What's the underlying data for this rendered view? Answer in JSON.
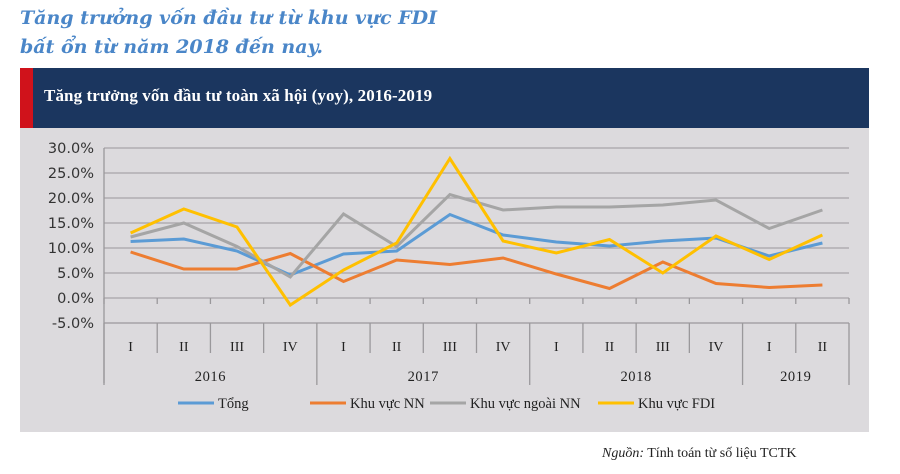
{
  "headline": {
    "line1": "Tăng trưởng vốn đầu tư từ khu vực FDI",
    "line2": "bất ổn từ năm 2018 đến nay."
  },
  "chart_data": {
    "type": "line",
    "title": "Tăng trưởng vốn đầu tư toàn xã hội (yoy), 2016-2019",
    "xlabel": "",
    "ylabel": "",
    "ylim": [
      -5,
      30
    ],
    "yticks": [
      "30.0%",
      "25.0%",
      "20.0%",
      "15.0%",
      "10.0%",
      "5.0%",
      "0.0%",
      "-5.0%"
    ],
    "ytick_values": [
      30,
      25,
      20,
      15,
      10,
      5,
      0,
      -5
    ],
    "grid": true,
    "legend_position": "bottom",
    "categories": [
      "I",
      "II",
      "III",
      "IV",
      "I",
      "II",
      "III",
      "IV",
      "I",
      "II",
      "III",
      "IV",
      "I",
      "II"
    ],
    "groups": [
      {
        "label": "2016",
        "count": 4
      },
      {
        "label": "2017",
        "count": 4
      },
      {
        "label": "2018",
        "count": 4
      },
      {
        "label": "2019",
        "count": 2
      }
    ],
    "series": [
      {
        "name": "Tổng",
        "color": "#5b9bd5",
        "values": [
          11.3,
          11.8,
          9.4,
          4.6,
          8.8,
          9.4,
          16.7,
          12.6,
          11.2,
          10.4,
          11.4,
          12.0,
          8.4,
          11.0
        ]
      },
      {
        "name": "Khu vực NN",
        "color": "#ed7d31",
        "values": [
          9.2,
          5.8,
          5.8,
          8.9,
          3.3,
          7.6,
          6.7,
          8.0,
          4.8,
          1.9,
          7.2,
          2.9,
          2.1,
          2.6
        ]
      },
      {
        "name": "Khu vực ngoài NN",
        "color": "#a5a5a5",
        "values": [
          12.2,
          15.0,
          10.3,
          4.2,
          16.8,
          10.3,
          20.7,
          17.6,
          18.2,
          18.2,
          18.6,
          19.6,
          13.9,
          17.6
        ]
      },
      {
        "name": "Khu vực FDI",
        "color": "#ffc000",
        "values": [
          13.0,
          17.8,
          14.2,
          -1.4,
          5.6,
          11.0,
          27.9,
          11.4,
          9.0,
          11.7,
          5.0,
          12.4,
          7.7,
          12.6
        ]
      }
    ]
  },
  "source": {
    "label": "Nguồn:",
    "text": "Tính toán từ số liệu TCTK"
  },
  "colors": {
    "headline": "#4a86c8",
    "banner": "#1b365f",
    "banner_stripe": "#d0121b",
    "panel": "#dcdadd"
  }
}
